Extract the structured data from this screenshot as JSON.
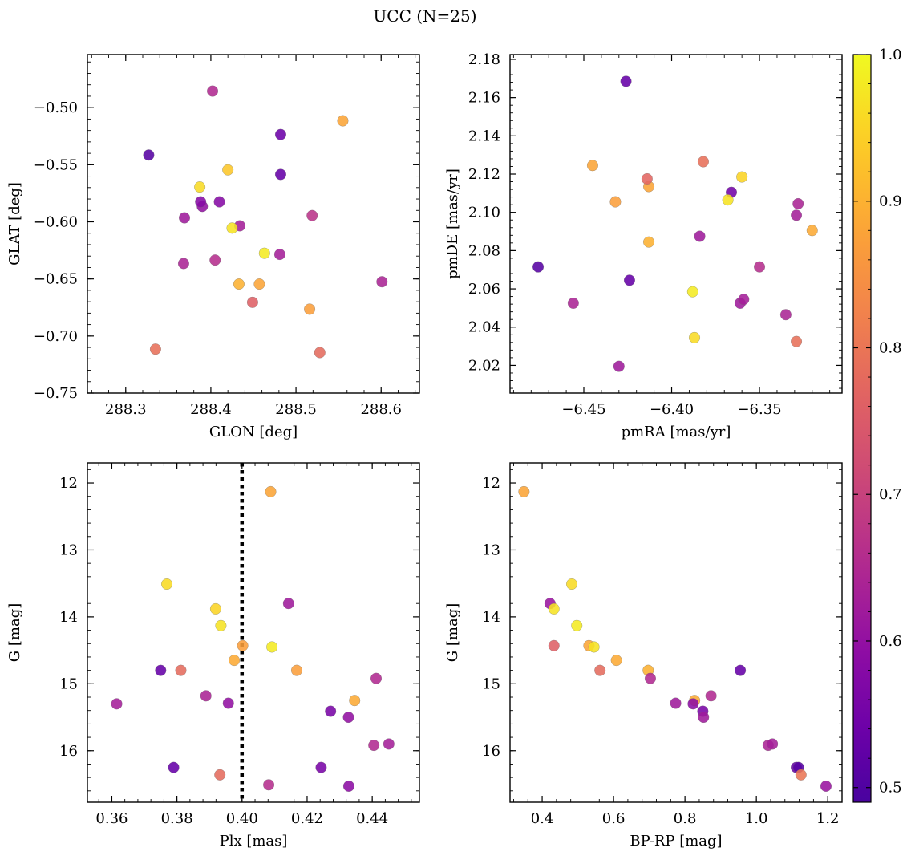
{
  "title": "UCC (N=25)",
  "colorbar": {
    "colormap": "plasma",
    "min": 0.49,
    "max": 1.0,
    "ticks": [
      0.5,
      0.6,
      0.7,
      0.8,
      0.9,
      1.0
    ],
    "tick_labels": [
      "0.5",
      "0.6",
      "0.7",
      "0.8",
      "0.9",
      "1.0"
    ]
  },
  "chart_data": [
    {
      "type": "scatter",
      "xlabel": "GLON [deg]",
      "ylabel": "GLAT [deg]",
      "xlim": [
        288.255,
        288.645
      ],
      "ylim": [
        -0.75,
        -0.4535
      ],
      "xticks": [
        288.3,
        288.4,
        288.5,
        288.6
      ],
      "xtick_labels": [
        "288.3",
        "288.4",
        "288.5",
        "288.6"
      ],
      "yticks": [
        -0.75,
        -0.7,
        -0.65,
        -0.6,
        -0.55,
        -0.5
      ],
      "ytick_labels": [
        "−0.75",
        "−0.70",
        "−0.65",
        "−0.60",
        "−0.55",
        "−0.50"
      ],
      "invert_y": false,
      "x": [
        288.402,
        288.327,
        288.482,
        288.482,
        288.39,
        288.388,
        288.41,
        288.369,
        288.434,
        288.368,
        288.405,
        288.481,
        288.519,
        288.601,
        288.555,
        288.42,
        288.387,
        288.425,
        288.463,
        288.433,
        288.457,
        288.449,
        288.516,
        288.335,
        288.528
      ],
      "y": [
        -0.4855,
        -0.5415,
        -0.5235,
        -0.5585,
        -0.5865,
        -0.5825,
        -0.5825,
        -0.5965,
        -0.6035,
        -0.6365,
        -0.6335,
        -0.6285,
        -0.5945,
        -0.6525,
        -0.5115,
        -0.5545,
        -0.5695,
        -0.6055,
        -0.6275,
        -0.6545,
        -0.6545,
        -0.6705,
        -0.6765,
        -0.7115,
        -0.7145
      ],
      "prob": [
        0.65,
        0.51,
        0.54,
        0.53,
        0.6,
        0.58,
        0.58,
        0.62,
        0.63,
        0.64,
        0.66,
        0.63,
        0.67,
        0.64,
        0.88,
        0.93,
        0.96,
        0.97,
        0.98,
        0.9,
        0.88,
        0.76,
        0.87,
        0.79,
        0.78
      ],
      "vline": null
    },
    {
      "type": "scatter",
      "xlabel": "pmRA [mas/yr]",
      "ylabel": "pmDE [mas/yr]",
      "xlim": [
        -6.492,
        -6.303
      ],
      "ylim": [
        2.0055,
        2.1825
      ],
      "xticks": [
        -6.45,
        -6.4,
        -6.35
      ],
      "xtick_labels": [
        "−6.45",
        "−6.40",
        "−6.35"
      ],
      "yticks": [
        2.02,
        2.04,
        2.06,
        2.08,
        2.1,
        2.12,
        2.14,
        2.16,
        2.18
      ],
      "ytick_labels": [
        "2.02",
        "2.04",
        "2.06",
        "2.08",
        "2.10",
        "2.12",
        "2.14",
        "2.16",
        "2.18"
      ],
      "invert_y": false,
      "x": [
        -6.426,
        -6.476,
        -6.424,
        -6.456,
        -6.43,
        -6.366,
        -6.384,
        -6.328,
        -6.329,
        -6.35,
        -6.361,
        -6.359,
        -6.335,
        -6.445,
        -6.432,
        -6.413,
        -6.414,
        -6.382,
        -6.36,
        -6.368,
        -6.32,
        -6.413,
        -6.388,
        -6.387,
        -6.329
      ],
      "y": [
        2.1685,
        2.0715,
        2.0645,
        2.0525,
        2.0195,
        2.1105,
        2.0875,
        2.1045,
        2.0985,
        2.0715,
        2.0525,
        2.0545,
        2.0465,
        2.1245,
        2.1055,
        2.1135,
        2.1175,
        2.1265,
        2.1185,
        2.1065,
        2.0905,
        2.0845,
        2.0585,
        2.0345,
        2.0325
      ],
      "prob": [
        0.53,
        0.51,
        0.53,
        0.64,
        0.62,
        0.55,
        0.62,
        0.64,
        0.63,
        0.66,
        0.62,
        0.63,
        0.64,
        0.88,
        0.87,
        0.88,
        0.77,
        0.79,
        0.95,
        0.97,
        0.89,
        0.9,
        0.98,
        0.96,
        0.79
      ],
      "vline": null
    },
    {
      "type": "scatter",
      "xlabel": "Plx [mas]",
      "ylabel": "G [mag]",
      "xlim": [
        0.3525,
        0.4545
      ],
      "ylim": [
        16.77,
        11.7
      ],
      "xticks": [
        0.36,
        0.38,
        0.4,
        0.42,
        0.44
      ],
      "xtick_labels": [
        "0.36",
        "0.38",
        "0.40",
        "0.42",
        "0.44"
      ],
      "yticks": [
        12,
        13,
        14,
        15,
        16
      ],
      "ytick_labels": [
        "12",
        "13",
        "14",
        "15",
        "16"
      ],
      "invert_y": true,
      "x": [
        0.3615,
        0.375,
        0.379,
        0.3889,
        0.3958,
        0.4143,
        0.4272,
        0.4243,
        0.4327,
        0.4328,
        0.4412,
        0.4405,
        0.4451,
        0.4088,
        0.4082,
        0.3769,
        0.3919,
        0.3935,
        0.4092,
        0.3976,
        0.4168,
        0.4002,
        0.4346,
        0.3932,
        0.3812
      ],
      "y": [
        15.3,
        14.8,
        16.25,
        15.18,
        15.29,
        13.8,
        15.41,
        16.25,
        15.5,
        16.53,
        14.92,
        15.92,
        15.9,
        12.13,
        16.51,
        13.51,
        13.88,
        14.13,
        14.45,
        14.65,
        14.8,
        14.43,
        15.25,
        16.36,
        14.8
      ],
      "prob": [
        0.63,
        0.53,
        0.53,
        0.64,
        0.6,
        0.62,
        0.56,
        0.56,
        0.6,
        0.59,
        0.65,
        0.65,
        0.63,
        0.88,
        0.66,
        0.96,
        0.95,
        0.97,
        0.98,
        0.89,
        0.87,
        0.87,
        0.89,
        0.78,
        0.78
      ],
      "vline": 0.4
    },
    {
      "type": "scatter",
      "xlabel": "BP-RP [mag]",
      "ylabel": "G [mag]",
      "xlim": [
        0.31,
        1.24
      ],
      "ylim": [
        16.77,
        11.7
      ],
      "xticks": [
        0.4,
        0.6,
        0.8,
        1.0,
        1.2
      ],
      "xtick_labels": [
        "0.4",
        "0.6",
        "0.8",
        "1.0",
        "1.2"
      ],
      "yticks": [
        12,
        13,
        14,
        15,
        16
      ],
      "ytick_labels": [
        "12",
        "13",
        "14",
        "15",
        "16"
      ],
      "invert_y": true,
      "x": [
        0.349,
        0.483,
        0.422,
        0.433,
        0.497,
        0.531,
        0.545,
        0.433,
        0.608,
        0.562,
        0.697,
        0.703,
        0.774,
        0.827,
        0.873,
        0.823,
        0.85,
        0.955,
        0.852,
        1.033,
        1.045,
        1.112,
        1.118,
        1.125,
        1.195
      ],
      "y": [
        12.13,
        13.51,
        13.8,
        13.88,
        14.13,
        14.43,
        14.45,
        14.43,
        14.65,
        14.8,
        14.8,
        14.92,
        15.29,
        15.25,
        15.18,
        15.3,
        15.41,
        14.8,
        15.5,
        15.92,
        15.9,
        16.25,
        16.25,
        16.36,
        16.53
      ],
      "prob": [
        0.88,
        0.96,
        0.61,
        0.97,
        0.98,
        0.88,
        0.97,
        0.76,
        0.89,
        0.78,
        0.9,
        0.65,
        0.62,
        0.89,
        0.65,
        0.59,
        0.56,
        0.53,
        0.62,
        0.64,
        0.63,
        0.53,
        0.51,
        0.8,
        0.61
      ],
      "vline": null
    }
  ]
}
